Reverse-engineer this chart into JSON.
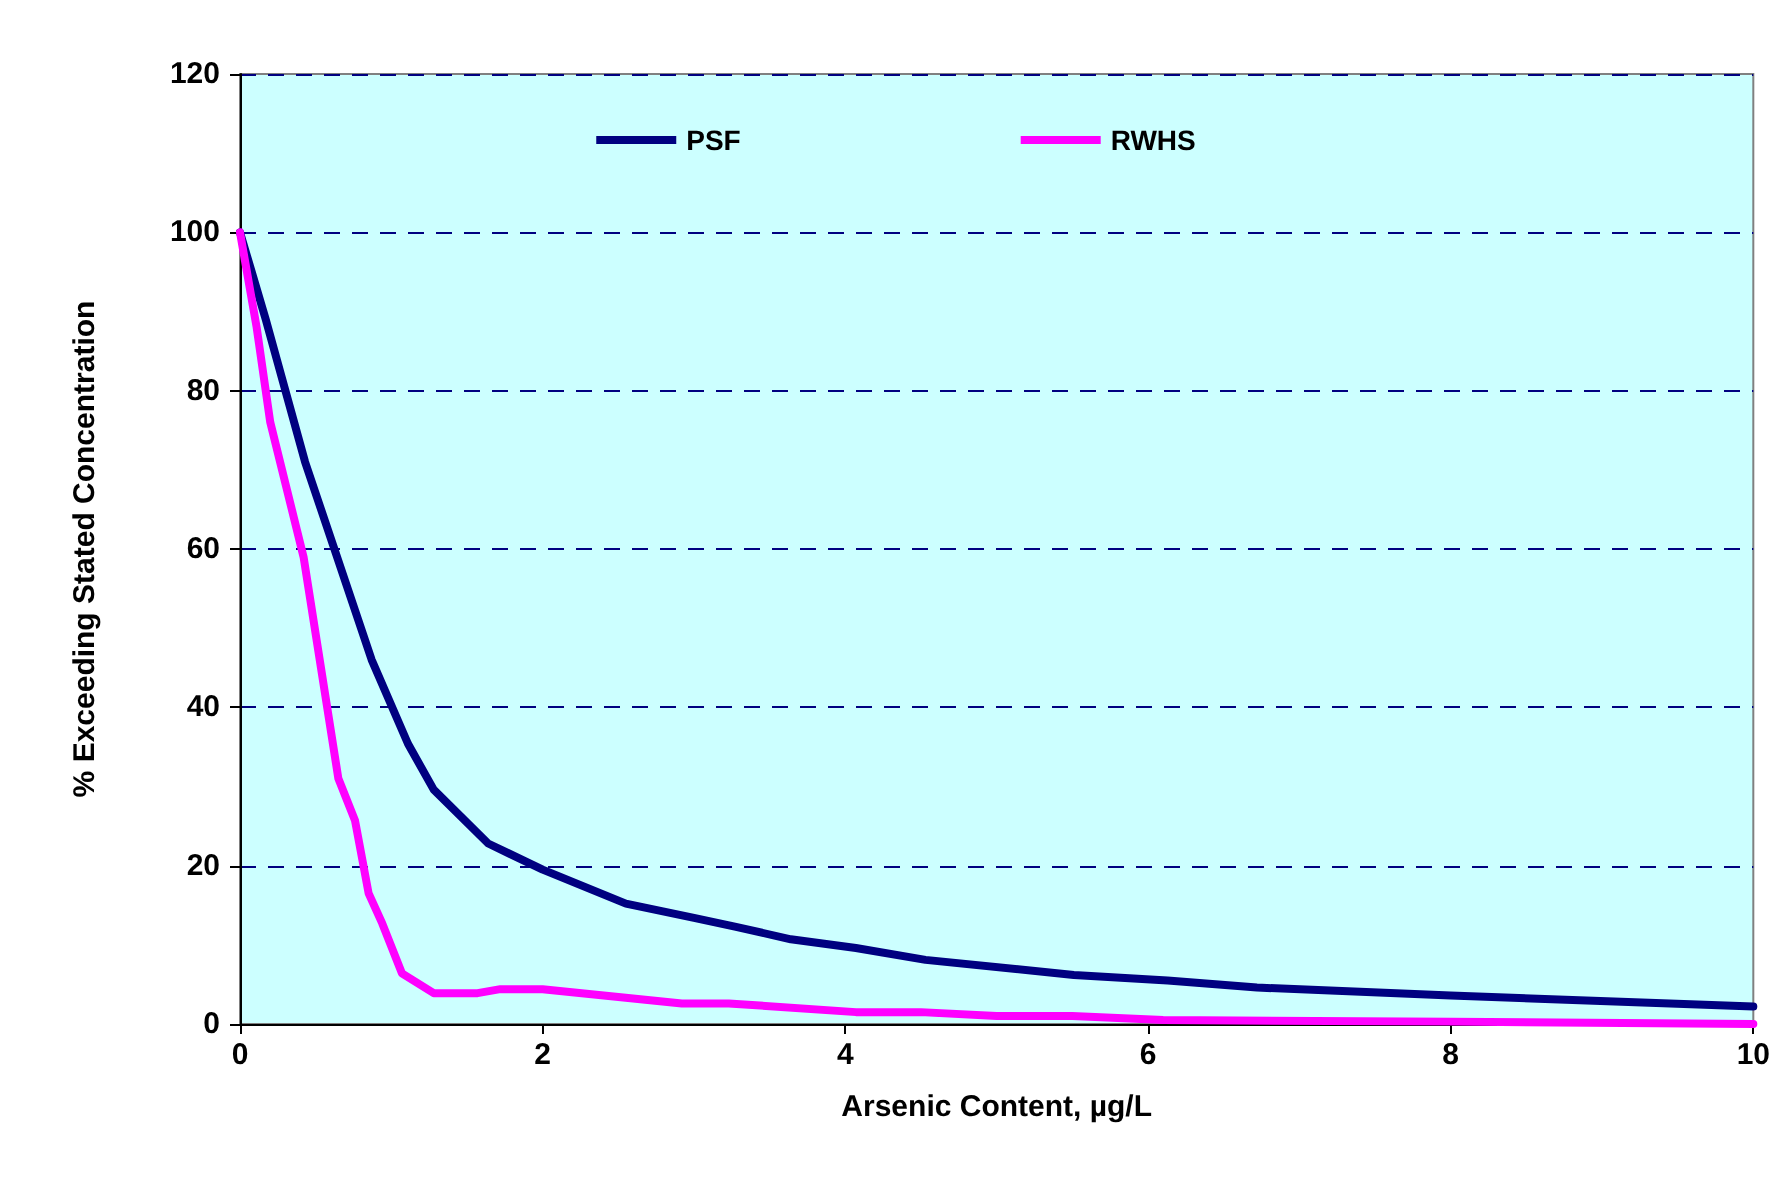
{
  "chart_data": {
    "type": "line",
    "xlabel": "Arsenic Content, µg/L",
    "ylabel": "% Exceeding Stated Concentration",
    "xlim": [
      0,
      10
    ],
    "xticks": [
      0,
      2,
      4,
      6,
      8,
      10
    ],
    "ylim": [
      0,
      120
    ],
    "yticks": [
      0,
      20,
      40,
      60,
      80,
      100,
      120
    ],
    "grid": "y",
    "legend": "top",
    "marker": "none",
    "line_style": "solid",
    "series": [
      {
        "name": "PSF",
        "color": "#000080",
        "x": [
          0,
          0.17,
          0.43,
          0.87,
          1.11,
          1.28,
          1.64,
          2.0,
          2.55,
          3.0,
          3.27,
          3.64,
          4.07,
          4.53,
          5.51,
          6.13,
          6.72,
          8.0,
          10
        ],
        "values": [
          100,
          89,
          71,
          46,
          35.4,
          29.6,
          22.8,
          19.5,
          15.2,
          13.4,
          12.3,
          10.7,
          9.6,
          8.1,
          6.2,
          5.5,
          4.6,
          3.6,
          2.2
        ]
      },
      {
        "name": "RWHS",
        "color": "#ff00ff",
        "x": [
          0,
          0.11,
          0.2,
          0.42,
          0.65,
          0.76,
          0.85,
          0.94,
          1.07,
          1.28,
          1.57,
          1.72,
          2.0,
          2.92,
          3.23,
          4.07,
          4.5,
          5.0,
          5.5,
          6.1,
          8.0,
          10
        ],
        "values": [
          100,
          88,
          76,
          59,
          31,
          25.7,
          16.5,
          12.7,
          6.4,
          3.9,
          3.9,
          4.4,
          4.4,
          2.6,
          2.6,
          1.5,
          1.5,
          1.0,
          1.0,
          0.5,
          0.3,
          0
        ]
      }
    ]
  }
}
